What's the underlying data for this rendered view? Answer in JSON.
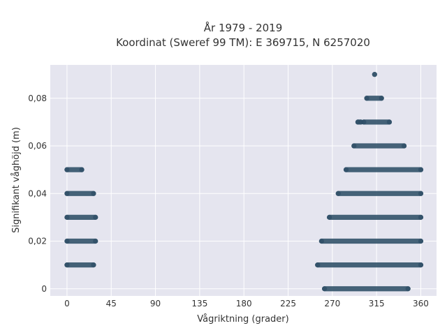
{
  "chart_data": {
    "type": "scatter",
    "title_line1": "År 1979 - 2019",
    "title_line2": "Koordinat (Sweref 99 TM): E 369715, N 6257020",
    "xlabel": "Vågriktning (grader)",
    "ylabel": "Signifikant våghöjd (m)",
    "x_ticks": [
      0,
      45,
      90,
      135,
      180,
      225,
      270,
      315,
      360
    ],
    "x_tick_labels": [
      "0",
      "45",
      "90",
      "135",
      "180",
      "225",
      "270",
      "315",
      "360"
    ],
    "y_ticks": [
      0,
      0.02,
      0.04,
      0.06,
      0.08
    ],
    "y_tick_labels": [
      "0",
      "0,02",
      "0,04",
      "0,06",
      "0,08"
    ],
    "xlim": [
      -17,
      376
    ],
    "ylim": [
      -0.003,
      0.094
    ],
    "grid": true,
    "colors": {
      "plot_bg": "#e5e5ef",
      "grid": "#ffffff",
      "marker": "#2e4e66",
      "text": "#333333"
    },
    "bands": [
      {
        "y": 0.0,
        "segments": [
          [
            262,
            347
          ]
        ]
      },
      {
        "y": 0.01,
        "segments": [
          [
            0,
            27
          ],
          [
            255,
            360
          ]
        ]
      },
      {
        "y": 0.02,
        "segments": [
          [
            0,
            29
          ],
          [
            259,
            360
          ]
        ]
      },
      {
        "y": 0.03,
        "segments": [
          [
            0,
            29
          ],
          [
            267,
            360
          ]
        ]
      },
      {
        "y": 0.04,
        "segments": [
          [
            0,
            27
          ],
          [
            276,
            360
          ]
        ]
      },
      {
        "y": 0.05,
        "segments": [
          [
            0,
            15
          ],
          [
            284,
            360
          ]
        ]
      },
      {
        "y": 0.06,
        "segments": [
          [
            292,
            343
          ]
        ]
      },
      {
        "y": 0.07,
        "segments": [
          [
            296,
            299
          ],
          [
            302,
            328
          ]
        ]
      },
      {
        "y": 0.08,
        "segments": [
          [
            305,
            320
          ]
        ]
      },
      {
        "y": 0.09,
        "segments": [
          [
            313,
            313
          ]
        ]
      }
    ]
  }
}
